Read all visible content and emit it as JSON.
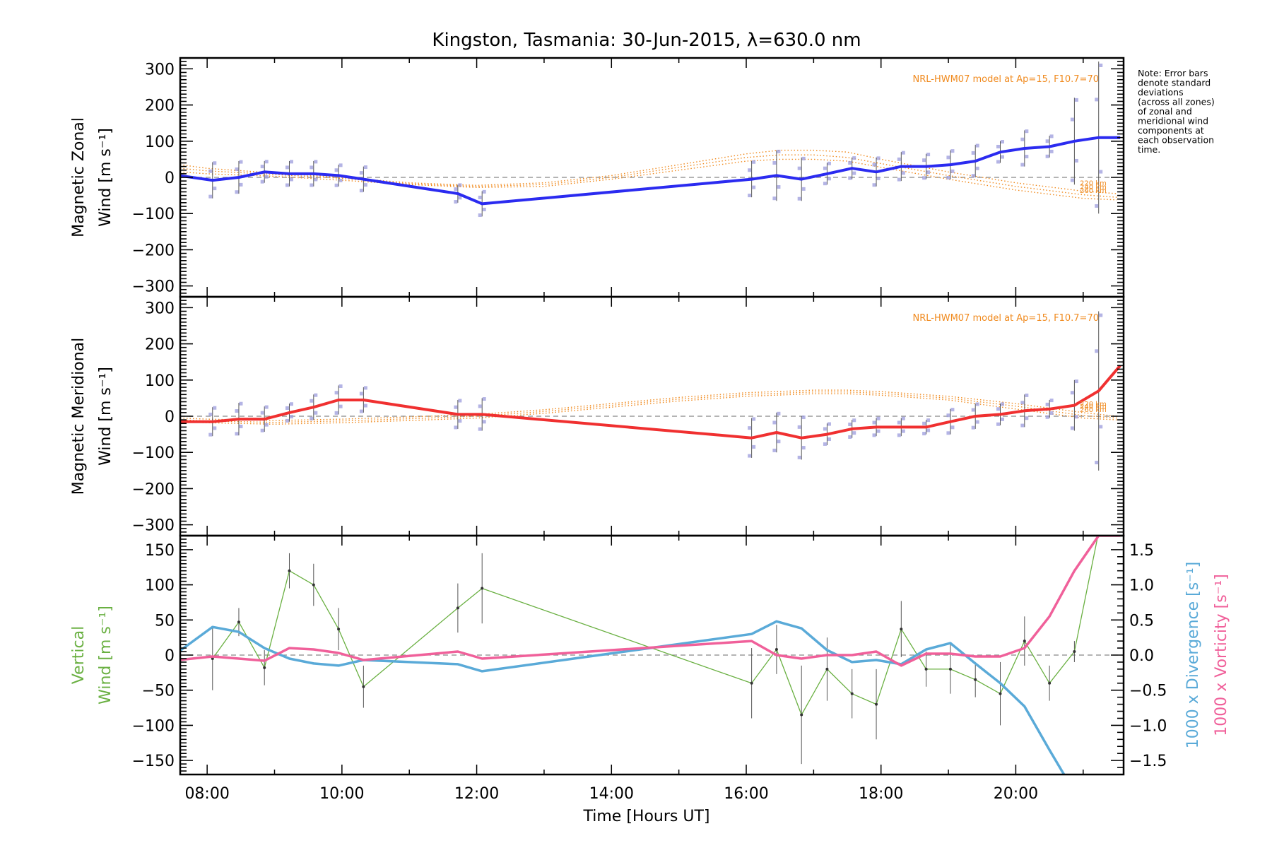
{
  "chart_data": {
    "type": "line",
    "title": "Kingston, Tasmania: 30-Jun-2015, λ=630.0 nm",
    "note": [
      "Note: Error bars",
      "denote standard",
      "deviations",
      "(across all zones)",
      "of zonal and",
      "meridional wind",
      "components at",
      "each observation",
      "time."
    ],
    "xlabel": "Time [Hours UT]",
    "xlim": [
      7.6,
      21.6
    ],
    "xticks": [
      8,
      10,
      12,
      14,
      16,
      18,
      20
    ],
    "xtick_labels": [
      "08:00",
      "10:00",
      "12:00",
      "14:00",
      "16:00",
      "18:00",
      "20:00"
    ],
    "grid": false,
    "colors": {
      "zonal": "#2b2bf0",
      "meridional": "#f03030",
      "vertical": "#6ab042",
      "divergence": "#5aaad8",
      "vorticity": "#f0609a",
      "model": "#f08a1e",
      "zero_line": "#888888",
      "scatter": "#9b9bdc"
    },
    "panels": [
      {
        "name": "zonal",
        "ylabel": [
          "Magnetic Zonal",
          "Wind [m s⁻¹]"
        ],
        "ylim": [
          -330,
          330
        ],
        "yticks": [
          -300,
          -200,
          -100,
          0,
          100,
          200,
          300
        ],
        "model_label": "NRL-HWM07 model at Ap=15, F10.7=70",
        "model_heights": [
          "220 km",
          "240 km",
          "260 km"
        ],
        "series": [
          {
            "name": "Magnetic Zonal Wind",
            "x": [
              7.58,
              8.08,
              8.47,
              8.85,
              9.22,
              9.58,
              9.95,
              10.32,
              11.72,
              12.08,
              16.08,
              16.45,
              16.82,
              17.2,
              17.57,
              17.93,
              18.3,
              18.67,
              19.03,
              19.4,
              19.77,
              20.13,
              20.5,
              20.87,
              21.23,
              21.55
            ],
            "y": [
              5,
              -8,
              0,
              15,
              10,
              10,
              5,
              -5,
              -45,
              -73,
              -5,
              5,
              -5,
              10,
              25,
              15,
              30,
              30,
              35,
              45,
              70,
              80,
              85,
              100,
              110,
              110
            ],
            "err": [
              0,
              50,
              45,
              30,
              35,
              35,
              30,
              35,
              25,
              35,
              50,
              70,
              60,
              30,
              30,
              40,
              40,
              35,
              40,
              45,
              30,
              50,
              30,
              120,
              210,
              0
            ]
          }
        ],
        "model": {
          "x": [
            7.6,
            8,
            9,
            10,
            11,
            12,
            13,
            14,
            15,
            16,
            16.5,
            17,
            17.5,
            18,
            19,
            20,
            21,
            21.5
          ],
          "y220": [
            35,
            25,
            12,
            0,
            -15,
            -22,
            -15,
            5,
            35,
            65,
            75,
            75,
            70,
            50,
            15,
            -15,
            -38,
            -45
          ],
          "y240": [
            25,
            18,
            8,
            -3,
            -18,
            -25,
            -20,
            0,
            28,
            55,
            62,
            62,
            55,
            38,
            5,
            -25,
            -48,
            -55
          ],
          "y260": [
            15,
            10,
            3,
            -8,
            -20,
            -28,
            -25,
            -5,
            20,
            45,
            50,
            50,
            45,
            28,
            -5,
            -35,
            -58,
            -62
          ]
        }
      },
      {
        "name": "meridional",
        "ylabel": [
          "Magnetic Meridional",
          "Wind [m s⁻¹]"
        ],
        "ylim": [
          -330,
          330
        ],
        "yticks": [
          -300,
          -200,
          -100,
          0,
          100,
          200,
          300
        ],
        "model_label": "NRL-HWM07 model at Ap=15, F10.7=70",
        "model_heights": [
          "220 km",
          "240 km",
          "260 km"
        ],
        "series": [
          {
            "name": "Magnetic Meridional Wind",
            "x": [
              7.58,
              8.08,
              8.47,
              8.85,
              9.22,
              9.58,
              9.95,
              10.32,
              11.72,
              12.08,
              16.08,
              16.45,
              16.82,
              17.2,
              17.57,
              17.93,
              18.3,
              18.67,
              19.03,
              19.4,
              19.77,
              20.13,
              20.5,
              20.87,
              21.23,
              21.55
            ],
            "y": [
              -15,
              -15,
              -8,
              -8,
              10,
              25,
              45,
              45,
              5,
              5,
              -60,
              -45,
              -60,
              -50,
              -35,
              -30,
              -30,
              -30,
              -15,
              0,
              5,
              15,
              20,
              30,
              70,
              140
            ],
            "err": [
              0,
              40,
              45,
              35,
              25,
              35,
              40,
              35,
              40,
              45,
              55,
              55,
              60,
              30,
              25,
              25,
              25,
              20,
              35,
              35,
              30,
              45,
              25,
              70,
              220,
              0
            ]
          }
        ],
        "model": {
          "x": [
            7.6,
            8,
            9,
            10,
            11,
            12,
            13,
            14,
            15,
            16,
            17,
            17.5,
            18,
            19,
            20,
            21,
            21.5
          ],
          "y220": [
            -5,
            -8,
            -12,
            -8,
            -2,
            5,
            18,
            35,
            52,
            65,
            72,
            72,
            68,
            55,
            35,
            10,
            0
          ],
          "y240": [
            -10,
            -13,
            -17,
            -13,
            -7,
            0,
            13,
            30,
            47,
            60,
            67,
            67,
            63,
            50,
            28,
            2,
            -5
          ],
          "y260": [
            -15,
            -18,
            -22,
            -18,
            -12,
            -5,
            8,
            25,
            42,
            55,
            62,
            62,
            58,
            45,
            20,
            -5,
            -10
          ]
        }
      },
      {
        "name": "vertical",
        "ylabel": [
          "Vertical",
          "Wind [m s⁻¹]"
        ],
        "ylim": [
          -170,
          170
        ],
        "yticks": [
          -150,
          -100,
          -50,
          0,
          50,
          100,
          150
        ],
        "y2label_divergence": "1000 x Divergence [s⁻¹]",
        "y2label_vorticity": "1000 x Vorticity [s⁻¹]",
        "y2lim": [
          -1.7,
          1.7
        ],
        "y2ticks": [
          -1.5,
          -1.0,
          -0.5,
          0.0,
          0.5,
          1.0,
          1.5
        ],
        "y2tick_labels": [
          "-1.5",
          "-1.0",
          "-0.5",
          "0.0",
          "0.5",
          "1.0",
          "1.5"
        ],
        "series": [
          {
            "name": "Vertical Wind",
            "x": [
              8.08,
              8.47,
              8.85,
              9.22,
              9.58,
              9.95,
              10.32,
              11.72,
              12.08,
              16.08,
              16.45,
              16.82,
              17.2,
              17.57,
              17.93,
              18.3,
              18.67,
              19.03,
              19.4,
              19.77,
              20.13,
              20.5,
              20.87,
              21.23
            ],
            "y": [
              -5,
              47,
              -18,
              120,
              100,
              37,
              -45,
              67,
              95,
              -40,
              8,
              -85,
              -20,
              -55,
              -70,
              37,
              -20,
              -20,
              -35,
              -55,
              20,
              -40,
              5,
              175
            ],
            "err": [
              45,
              20,
              25,
              25,
              30,
              30,
              30,
              35,
              50,
              50,
              35,
              70,
              45,
              35,
              50,
              40,
              25,
              35,
              25,
              45,
              35,
              25,
              15,
              0
            ]
          },
          {
            "name": "1000 x Divergence",
            "axis": "y2",
            "x": [
              7.58,
              8.08,
              8.47,
              8.85,
              9.22,
              9.58,
              9.95,
              10.32,
              11.72,
              12.08,
              16.08,
              16.45,
              16.82,
              17.2,
              17.57,
              17.93,
              18.3,
              18.67,
              19.03,
              19.4,
              19.77,
              20.13,
              20.5,
              20.87
            ],
            "y": [
              0.05,
              0.4,
              0.33,
              0.1,
              -0.05,
              -0.12,
              -0.15,
              -0.07,
              -0.13,
              -0.23,
              0.3,
              0.48,
              0.38,
              0.07,
              -0.1,
              -0.07,
              -0.13,
              0.08,
              0.17,
              -0.12,
              -0.4,
              -0.73,
              -1.35,
              -1.95
            ]
          },
          {
            "name": "1000 x Vorticity",
            "axis": "y2",
            "x": [
              7.58,
              8.08,
              8.47,
              8.85,
              9.22,
              9.58,
              9.95,
              10.32,
              11.72,
              12.08,
              16.08,
              16.45,
              16.82,
              17.2,
              17.57,
              17.93,
              18.3,
              18.67,
              19.03,
              19.4,
              19.77,
              20.13,
              20.5,
              20.87,
              21.23,
              21.55
            ],
            "y": [
              -0.07,
              -0.02,
              -0.05,
              -0.08,
              0.1,
              0.08,
              0.03,
              -0.07,
              0.05,
              -0.05,
              0.2,
              0.0,
              -0.05,
              0.0,
              0.0,
              0.05,
              -0.15,
              0.02,
              0.02,
              -0.02,
              -0.02,
              0.1,
              0.55,
              1.2,
              1.7,
              1.7
            ]
          }
        ]
      }
    ]
  }
}
